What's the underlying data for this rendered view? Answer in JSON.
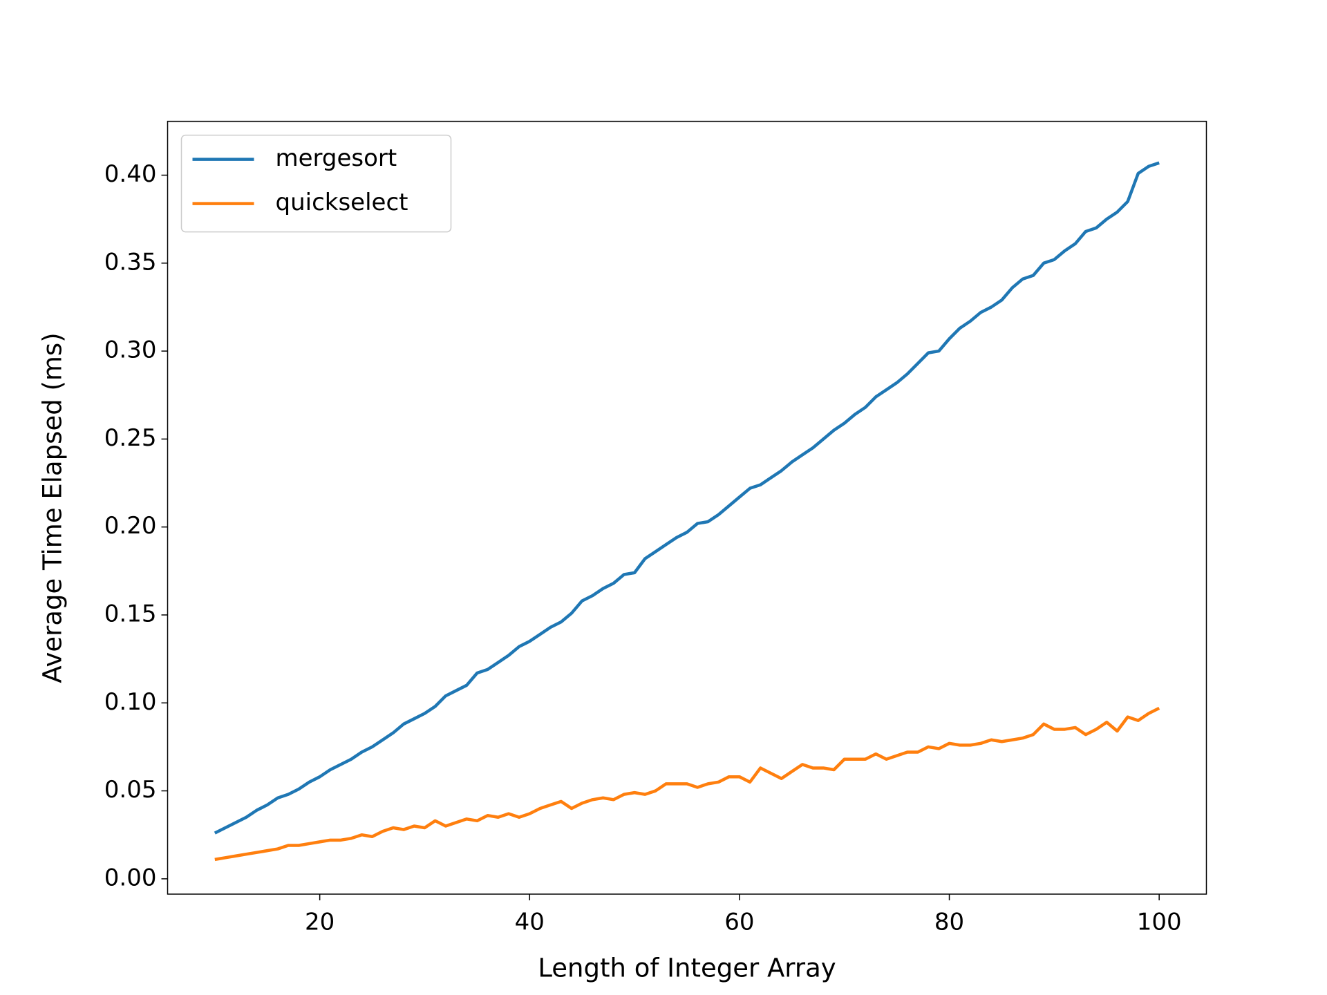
{
  "chart_data": {
    "type": "line",
    "xlabel": "Length of Integer Array",
    "ylabel": "Average Time Elapsed (ms)",
    "x": [
      10,
      11,
      12,
      13,
      14,
      15,
      16,
      17,
      18,
      19,
      20,
      21,
      22,
      23,
      24,
      25,
      26,
      27,
      28,
      29,
      30,
      31,
      32,
      33,
      34,
      35,
      36,
      37,
      38,
      39,
      40,
      41,
      42,
      43,
      44,
      45,
      46,
      47,
      48,
      49,
      50,
      51,
      52,
      53,
      54,
      55,
      56,
      57,
      58,
      59,
      60,
      61,
      62,
      63,
      64,
      65,
      66,
      67,
      68,
      69,
      70,
      71,
      72,
      73,
      74,
      75,
      76,
      77,
      78,
      79,
      80,
      81,
      82,
      83,
      84,
      85,
      86,
      87,
      88,
      89,
      90,
      91,
      92,
      93,
      94,
      95,
      96,
      97,
      98,
      99,
      100
    ],
    "series": [
      {
        "name": "mergesort",
        "color": "#1f77b4",
        "values": [
          0.026,
          0.029,
          0.032,
          0.035,
          0.039,
          0.042,
          0.046,
          0.048,
          0.051,
          0.055,
          0.058,
          0.062,
          0.065,
          0.068,
          0.072,
          0.075,
          0.079,
          0.083,
          0.088,
          0.091,
          0.094,
          0.098,
          0.104,
          0.107,
          0.11,
          0.117,
          0.119,
          0.123,
          0.127,
          0.132,
          0.135,
          0.139,
          0.143,
          0.146,
          0.151,
          0.158,
          0.161,
          0.165,
          0.168,
          0.173,
          0.174,
          0.182,
          0.186,
          0.19,
          0.194,
          0.197,
          0.202,
          0.203,
          0.207,
          0.212,
          0.217,
          0.222,
          0.224,
          0.228,
          0.232,
          0.237,
          0.241,
          0.245,
          0.25,
          0.255,
          0.259,
          0.264,
          0.268,
          0.274,
          0.278,
          0.282,
          0.287,
          0.293,
          0.299,
          0.3,
          0.307,
          0.313,
          0.317,
          0.322,
          0.325,
          0.329,
          0.336,
          0.341,
          0.343,
          0.35,
          0.352,
          0.357,
          0.361,
          0.368,
          0.37,
          0.375,
          0.379,
          0.385,
          0.401,
          0.405,
          0.407
        ]
      },
      {
        "name": "quickselect",
        "color": "#ff7f0e",
        "values": [
          0.011,
          0.012,
          0.013,
          0.014,
          0.015,
          0.016,
          0.017,
          0.019,
          0.019,
          0.02,
          0.021,
          0.022,
          0.022,
          0.023,
          0.025,
          0.024,
          0.027,
          0.029,
          0.028,
          0.03,
          0.029,
          0.033,
          0.03,
          0.032,
          0.034,
          0.033,
          0.036,
          0.035,
          0.037,
          0.035,
          0.037,
          0.04,
          0.042,
          0.044,
          0.04,
          0.043,
          0.045,
          0.046,
          0.045,
          0.048,
          0.049,
          0.048,
          0.05,
          0.054,
          0.054,
          0.054,
          0.052,
          0.054,
          0.055,
          0.058,
          0.058,
          0.055,
          0.063,
          0.06,
          0.057,
          0.061,
          0.065,
          0.063,
          0.063,
          0.062,
          0.068,
          0.068,
          0.068,
          0.071,
          0.068,
          0.07,
          0.072,
          0.072,
          0.075,
          0.074,
          0.077,
          0.076,
          0.076,
          0.077,
          0.079,
          0.078,
          0.079,
          0.08,
          0.082,
          0.088,
          0.085,
          0.085,
          0.086,
          0.082,
          0.085,
          0.089,
          0.084,
          0.092,
          0.09,
          0.094,
          0.097
        ]
      }
    ],
    "xlim": [
      5.5,
      104.5
    ],
    "xticks": [
      20,
      40,
      60,
      80,
      100
    ],
    "ylim": [
      -0.0087,
      0.4306
    ],
    "yticks": [
      {
        "value": 0,
        "label": "0.00"
      },
      {
        "value": 0.05,
        "label": "0.05"
      },
      {
        "value": 0.1,
        "label": "0.10"
      },
      {
        "value": 0.15,
        "label": "0.15"
      },
      {
        "value": 0.2,
        "label": "0.20"
      },
      {
        "value": 0.25,
        "label": "0.25"
      },
      {
        "value": 0.3,
        "label": "0.30"
      },
      {
        "value": 0.35,
        "label": "0.35"
      },
      {
        "value": 0.4,
        "label": "0.40"
      }
    ],
    "legend": "upper left",
    "grid": false
  }
}
